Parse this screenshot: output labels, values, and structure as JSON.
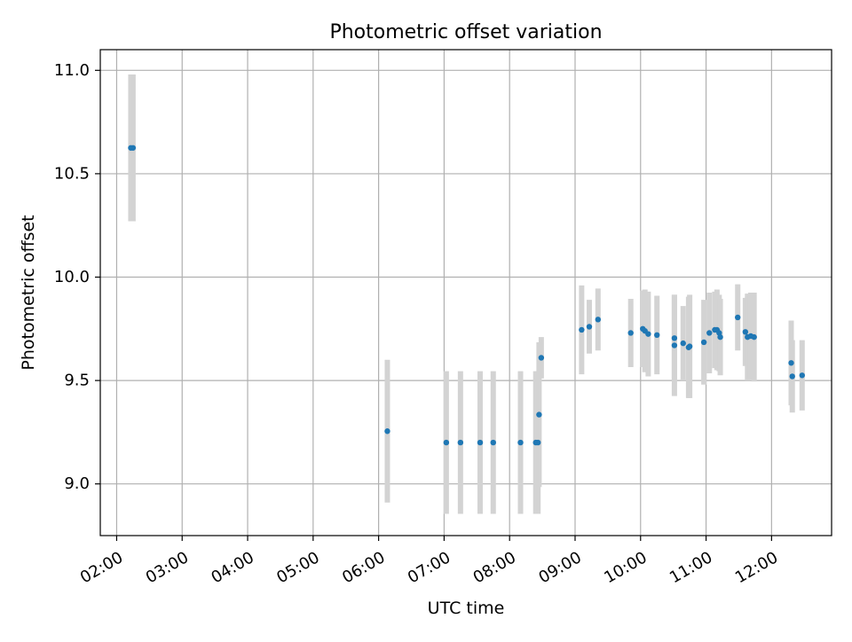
{
  "chart_data": {
    "type": "scatter",
    "title": "Photometric offset variation",
    "xlabel": "UTC time",
    "ylabel": "Photometric offset",
    "xlim": [
      "01:45",
      "12:55"
    ],
    "ylim": [
      8.75,
      11.1
    ],
    "x_ticks": [
      "02:00",
      "03:00",
      "04:00",
      "05:00",
      "06:00",
      "07:00",
      "08:00",
      "09:00",
      "10:00",
      "11:00",
      "12:00"
    ],
    "y_ticks": [
      "9.0",
      "9.5",
      "10.0",
      "10.5",
      "11.0"
    ],
    "y_tick_values": [
      9.0,
      9.5,
      10.0,
      10.5,
      11.0
    ],
    "grid": true,
    "colors": {
      "points": "#1f77b4",
      "errorbars": "#d3d3d3",
      "grid": "#b0b0b0"
    },
    "series": [
      {
        "points": [
          {
            "x": "02:13",
            "y": 10.625,
            "err": 0.355
          },
          {
            "x": "02:15",
            "y": 10.625,
            "err": 0.355
          },
          {
            "x": "06:08",
            "y": 9.255,
            "err": 0.345
          },
          {
            "x": "07:02",
            "y": 9.2,
            "err": 0.345
          },
          {
            "x": "07:15",
            "y": 9.2,
            "err": 0.345
          },
          {
            "x": "07:33",
            "y": 9.2,
            "err": 0.345
          },
          {
            "x": "07:45",
            "y": 9.2,
            "err": 0.345
          },
          {
            "x": "08:10",
            "y": 9.2,
            "err": 0.345
          },
          {
            "x": "08:24",
            "y": 9.2,
            "err": 0.345
          },
          {
            "x": "08:26",
            "y": 9.2,
            "err": 0.345
          },
          {
            "x": "08:27",
            "y": 9.335,
            "err": 0.35
          },
          {
            "x": "08:29",
            "y": 9.61,
            "err": 0.1
          },
          {
            "x": "09:06",
            "y": 9.745,
            "err": 0.215
          },
          {
            "x": "09:13",
            "y": 9.76,
            "err": 0.13
          },
          {
            "x": "09:21",
            "y": 9.795,
            "err": 0.15
          },
          {
            "x": "09:51",
            "y": 9.73,
            "err": 0.165
          },
          {
            "x": "10:02",
            "y": 9.75,
            "err": 0.185
          },
          {
            "x": "10:04",
            "y": 9.74,
            "err": 0.2
          },
          {
            "x": "10:07",
            "y": 9.725,
            "err": 0.205
          },
          {
            "x": "10:15",
            "y": 9.72,
            "err": 0.19
          },
          {
            "x": "10:31",
            "y": 9.705,
            "err": 0.21
          },
          {
            "x": "10:31",
            "y": 9.67,
            "err": 0.245
          },
          {
            "x": "10:39",
            "y": 9.68,
            "err": 0.18
          },
          {
            "x": "10:44",
            "y": 9.66,
            "err": 0.245
          },
          {
            "x": "10:45",
            "y": 9.665,
            "err": 0.25
          },
          {
            "x": "10:58",
            "y": 9.685,
            "err": 0.205
          },
          {
            "x": "11:03",
            "y": 9.73,
            "err": 0.195
          },
          {
            "x": "11:08",
            "y": 9.745,
            "err": 0.185
          },
          {
            "x": "11:10",
            "y": 9.745,
            "err": 0.195
          },
          {
            "x": "11:12",
            "y": 9.73,
            "err": 0.185
          },
          {
            "x": "11:13",
            "y": 9.71,
            "err": 0.185
          },
          {
            "x": "11:29",
            "y": 9.805,
            "err": 0.16
          },
          {
            "x": "11:36",
            "y": 9.735,
            "err": 0.165
          },
          {
            "x": "11:38",
            "y": 9.71,
            "err": 0.21
          },
          {
            "x": "11:41",
            "y": 9.715,
            "err": 0.21
          },
          {
            "x": "11:44",
            "y": 9.71,
            "err": 0.215
          },
          {
            "x": "12:18",
            "y": 9.585,
            "err": 0.205
          },
          {
            "x": "12:19",
            "y": 9.52,
            "err": 0.175
          },
          {
            "x": "12:28",
            "y": 9.525,
            "err": 0.17
          }
        ]
      }
    ]
  }
}
